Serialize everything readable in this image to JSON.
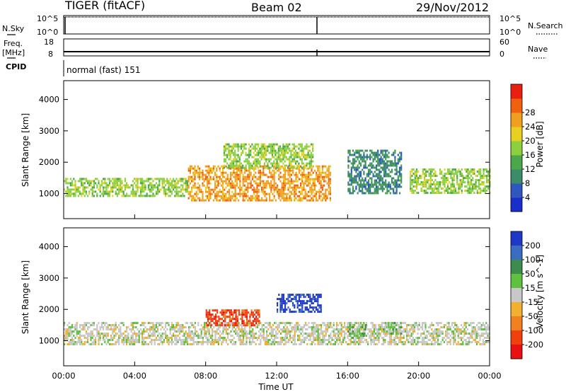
{
  "header": {
    "station": "TIGER (fitACF)",
    "beam": "Beam 02",
    "date": "29/Nov/2012"
  },
  "status_panels": {
    "nsky_label": "N.Sky",
    "nsky_ticks": [
      "10^5",
      "10^0"
    ],
    "nsearch_label": "N.Search",
    "nsearch_ticks": [
      "10^5",
      "10^0"
    ],
    "freq_label": "Freq.",
    "freq_unit": "[MHz]",
    "freq_ticks": [
      "18",
      "8"
    ],
    "nave_label": "Nave",
    "nave_ticks": [
      "60",
      "0"
    ],
    "cpid_label": "CPID",
    "cpid_value": "normal (fast) 151"
  },
  "chart_data": [
    {
      "type": "heatmap",
      "panel": "power",
      "ylabel": "Slant Range [km]",
      "xlabel": "",
      "x_ticks": [
        "00:00",
        "04:00",
        "08:00",
        "12:00",
        "16:00",
        "20:00",
        "00:00"
      ],
      "x_range_hours": [
        0,
        24
      ],
      "ylim": [
        200,
        4600
      ],
      "y_ticks": [
        1000,
        2000,
        3000,
        4000
      ],
      "colorbar": {
        "label": "Power [dB]",
        "ticks": [
          4,
          8,
          12,
          16,
          20,
          24,
          28
        ],
        "colors": [
          "#1a2ecc",
          "#2e58c0",
          "#3c8c6a",
          "#4aa84a",
          "#8cd040",
          "#e8d020",
          "#f0a020",
          "#f06010",
          "#e82010"
        ]
      },
      "echo_regions": [
        {
          "name": "main band (morning)",
          "t_start": 0,
          "t_end": 7,
          "range_low": 900,
          "range_high": 1500,
          "level_db": 16
        },
        {
          "name": "main band (day)",
          "t_start": 7,
          "t_end": 15,
          "range_low": 800,
          "range_high": 1900,
          "level_db": 24
        },
        {
          "name": "upper patches",
          "t_start": 9,
          "t_end": 14,
          "range_low": 1800,
          "range_high": 2600,
          "level_db": 16
        },
        {
          "name": "afternoon arc",
          "t_start": 16,
          "t_end": 19,
          "range_low": 1000,
          "range_high": 2400,
          "level_db": 8
        },
        {
          "name": "evening band",
          "t_start": 19.5,
          "t_end": 24,
          "range_low": 1000,
          "range_high": 1800,
          "level_db": 16
        }
      ]
    },
    {
      "type": "heatmap",
      "panel": "velocity",
      "ylabel": "Slant Range [km]",
      "xlabel": "Time UT",
      "x_ticks": [
        "00:00",
        "04:00",
        "08:00",
        "12:00",
        "16:00",
        "20:00",
        "00:00"
      ],
      "x_range_hours": [
        0,
        24
      ],
      "ylim": [
        200,
        4600
      ],
      "y_ticks": [
        1000,
        2000,
        3000,
        4000
      ],
      "colorbar": {
        "label": "Velocity [m s^-1]",
        "ticks": [
          200,
          100,
          50,
          15,
          -15,
          -50,
          -100,
          -200
        ],
        "colors": [
          "#2038c8",
          "#3a6cc0",
          "#3c8c4c",
          "#60c040",
          "#c8c8c8",
          "#f0b030",
          "#f08020",
          "#f04010",
          "#e81010"
        ]
      },
      "echo_regions": [
        {
          "name": "ground scatter band",
          "t_start": 0,
          "t_end": 24,
          "range_low": 900,
          "range_high": 1600,
          "velocity": 0
        },
        {
          "name": "negative patch",
          "t_start": 8,
          "t_end": 11,
          "range_low": 1500,
          "range_high": 2000,
          "velocity": -150
        },
        {
          "name": "positive patch",
          "t_start": 12,
          "t_end": 14.5,
          "range_low": 1900,
          "range_high": 2500,
          "velocity": 180
        },
        {
          "name": "green patch 1",
          "t_start": 16,
          "t_end": 17,
          "range_low": 1100,
          "range_high": 1600,
          "velocity": 40
        },
        {
          "name": "green patch 2",
          "t_start": 18,
          "t_end": 19,
          "range_low": 1200,
          "range_high": 1600,
          "velocity": 40
        }
      ]
    }
  ]
}
